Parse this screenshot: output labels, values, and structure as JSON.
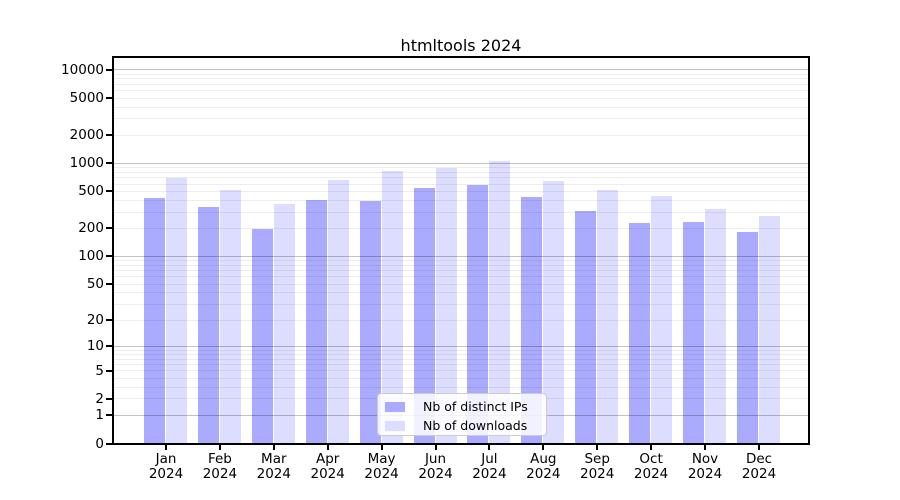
{
  "title": "htmltools 2024",
  "colors": {
    "bar_distinct_ips": "#aaaaff",
    "bar_downloads": "#ddddff",
    "grid_minor": "rgba(0,0,0,0.07)",
    "grid_major": "rgba(0,0,0,0.24)",
    "axis": "#000000",
    "background": "#ffffff"
  },
  "y_axis": {
    "tick_labels": [
      "0",
      "1",
      "2",
      "5",
      "10",
      "20",
      "50",
      "100",
      "200",
      "500",
      "1000",
      "2000",
      "5000",
      "10000"
    ]
  },
  "x_axis": {
    "tick_labels": [
      "Jan 2024",
      "Feb 2024",
      "Mar 2024",
      "Apr 2024",
      "May 2024",
      "Jun 2024",
      "Jul 2024",
      "Aug 2024",
      "Sep 2024",
      "Oct 2024",
      "Nov 2024",
      "Dec 2024"
    ]
  },
  "legend": {
    "items": [
      {
        "label": "Nb of distinct IPs",
        "color": "#aaaaff"
      },
      {
        "label": "Nb of downloads",
        "color": "#ddddff"
      }
    ]
  },
  "chart_data": {
    "type": "bar",
    "title": "htmltools 2024",
    "categories": [
      "Jan 2024",
      "Feb 2024",
      "Mar 2024",
      "Apr 2024",
      "May 2024",
      "Jun 2024",
      "Jul 2024",
      "Aug 2024",
      "Sep 2024",
      "Oct 2024",
      "Nov 2024",
      "Dec 2024"
    ],
    "series": [
      {
        "name": "Nb of distinct IPs",
        "color": "#aaaaff",
        "values": [
          425,
          340,
          198,
          400,
          398,
          537,
          592,
          435,
          308,
          228,
          237,
          181
        ]
      },
      {
        "name": "Nb of downloads",
        "color": "#ddddff",
        "values": [
          700,
          520,
          370,
          655,
          830,
          900,
          1070,
          650,
          512,
          448,
          325,
          270
        ]
      }
    ],
    "xlabel": "",
    "ylabel": "",
    "yscale": "log1p",
    "ylim": [
      0,
      13700
    ],
    "yticks": [
      0,
      1,
      2,
      5,
      10,
      20,
      50,
      100,
      200,
      500,
      1000,
      2000,
      5000,
      10000
    ],
    "grid": "horizontal minor+major log gridlines, drawn over bars",
    "legend_position": "lower center"
  }
}
